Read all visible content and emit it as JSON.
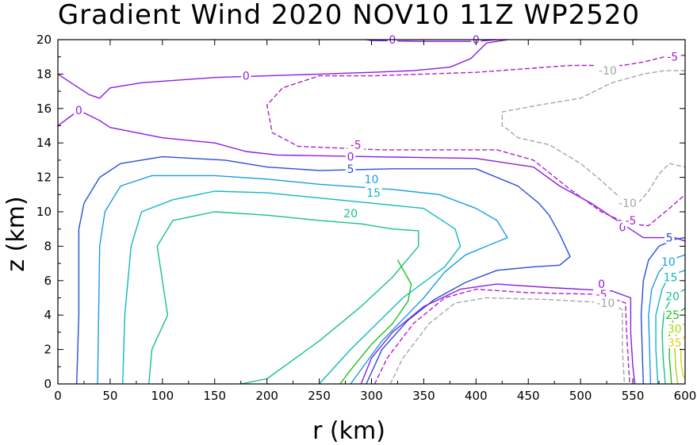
{
  "chart_data": {
    "type": "contour",
    "title": "Gradient Wind 2020 NOV10 11Z  WP2520",
    "xlabel": "r (km)",
    "ylabel": "z (km)",
    "xlim": [
      0,
      600
    ],
    "ylim": [
      0,
      20
    ],
    "xticks": [
      0,
      50,
      100,
      150,
      200,
      250,
      300,
      350,
      400,
      450,
      500,
      550,
      600
    ],
    "yticks": [
      0,
      2,
      4,
      6,
      8,
      10,
      12,
      14,
      16,
      18,
      20
    ],
    "colors": {
      "-10": "#a6a6a6",
      "-5": "#b020c8",
      "0": "#8a1ee0",
      "5": "#2850d8",
      "10": "#1a9ce6",
      "15": "#12b8c0",
      "20": "#18c08e",
      "25": "#22c020",
      "30": "#a8d818",
      "35": "#dcd21e"
    },
    "contours": [
      {
        "level": 0,
        "dash": false,
        "points": [
          [
            0,
            18
          ],
          [
            30,
            16.8
          ],
          [
            40,
            16.6
          ],
          [
            50,
            17.2
          ],
          [
            80,
            17.5
          ],
          [
            150,
            17.8
          ],
          [
            200,
            17.9
          ],
          [
            250,
            18
          ],
          [
            300,
            18.1
          ],
          [
            340,
            18.2
          ],
          [
            375,
            18.4
          ],
          [
            395,
            18.9
          ],
          [
            410,
            19.8
          ],
          [
            430,
            20
          ]
        ]
      },
      {
        "level": 0,
        "dash": false,
        "points": [
          [
            0,
            15
          ],
          [
            20,
            15.9
          ],
          [
            40,
            15.3
          ],
          [
            50,
            14.9
          ],
          [
            100,
            14.3
          ],
          [
            150,
            14
          ],
          [
            180,
            13.5
          ],
          [
            210,
            13.3
          ],
          [
            300,
            13.2
          ],
          [
            400,
            13.1
          ],
          [
            455,
            12.6
          ],
          [
            480,
            11.5
          ],
          [
            510,
            10.5
          ],
          [
            535,
            9.5
          ],
          [
            560,
            8.5
          ],
          [
            590,
            8.5
          ],
          [
            600,
            8.3
          ]
        ]
      },
      {
        "level": 0,
        "dash": false,
        "points": [
          [
            295,
            20
          ],
          [
            300,
            19.95
          ],
          [
            350,
            19.9
          ],
          [
            400,
            19.9
          ],
          [
            420,
            20
          ]
        ]
      },
      {
        "level": -5,
        "dash": true,
        "points": [
          [
            600,
            19.1
          ],
          [
            580,
            19
          ],
          [
            560,
            18.7
          ],
          [
            540,
            18.5
          ],
          [
            490,
            18.5
          ],
          [
            400,
            18.1
          ],
          [
            300,
            17.9
          ],
          [
            250,
            17.9
          ],
          [
            215,
            17.2
          ],
          [
            200,
            16.2
          ],
          [
            205,
            14.6
          ],
          [
            230,
            13.8
          ],
          [
            270,
            13.7
          ],
          [
            310,
            13.6
          ],
          [
            420,
            13.6
          ],
          [
            455,
            13
          ],
          [
            490,
            11.3
          ],
          [
            520,
            10
          ],
          [
            545,
            9.3
          ],
          [
            565,
            9.2
          ],
          [
            585,
            10.2
          ],
          [
            600,
            11
          ]
        ]
      },
      {
        "level": -10,
        "dash": true,
        "points": [
          [
            600,
            18.2
          ],
          [
            580,
            18.2
          ],
          [
            560,
            18
          ],
          [
            530,
            17.5
          ],
          [
            500,
            16.6
          ],
          [
            460,
            16.2
          ],
          [
            425,
            15.8
          ],
          [
            425,
            15
          ],
          [
            430,
            14.8
          ],
          [
            440,
            14.3
          ],
          [
            470,
            13.9
          ],
          [
            500,
            12.8
          ],
          [
            520,
            11.8
          ],
          [
            540,
            10.7
          ],
          [
            555,
            10.5
          ],
          [
            565,
            11.2
          ],
          [
            575,
            12.2
          ],
          [
            585,
            12.8
          ],
          [
            600,
            12.6
          ]
        ]
      },
      {
        "level": 5,
        "dash": false,
        "points": [
          [
            18,
            0
          ],
          [
            20,
            4
          ],
          [
            20,
            9
          ],
          [
            25,
            10.5
          ],
          [
            40,
            12
          ],
          [
            60,
            12.8
          ],
          [
            100,
            13.2
          ],
          [
            160,
            13
          ],
          [
            200,
            12.6
          ],
          [
            250,
            12.4
          ],
          [
            320,
            12.5
          ],
          [
            400,
            12.5
          ],
          [
            440,
            11.5
          ],
          [
            460,
            10.5
          ],
          [
            470,
            9.8
          ],
          [
            480,
            8.7
          ],
          [
            490,
            7.4
          ],
          [
            480,
            6.9
          ],
          [
            455,
            6.8
          ],
          [
            420,
            6.6
          ],
          [
            390,
            5.9
          ],
          [
            360,
            4.9
          ],
          [
            335,
            3.7
          ],
          [
            310,
            2
          ],
          [
            295,
            0
          ]
        ]
      },
      {
        "level": 10,
        "dash": false,
        "points": [
          [
            38,
            0
          ],
          [
            39,
            4
          ],
          [
            40,
            8
          ],
          [
            45,
            10
          ],
          [
            60,
            11.5
          ],
          [
            90,
            12.1
          ],
          [
            150,
            12.1
          ],
          [
            200,
            11.9
          ],
          [
            250,
            11.6
          ],
          [
            320,
            11.3
          ],
          [
            365,
            11
          ],
          [
            400,
            10.2
          ],
          [
            420,
            9.5
          ],
          [
            430,
            8.5
          ],
          [
            410,
            8
          ],
          [
            390,
            7.5
          ],
          [
            370,
            6.5
          ],
          [
            350,
            5
          ],
          [
            310,
            2.5
          ],
          [
            280,
            0
          ]
        ]
      },
      {
        "level": 15,
        "dash": false,
        "points": [
          [
            62,
            0
          ],
          [
            64,
            4
          ],
          [
            70,
            8
          ],
          [
            80,
            10
          ],
          [
            110,
            10.7
          ],
          [
            150,
            11.2
          ],
          [
            200,
            11.1
          ],
          [
            250,
            10.8
          ],
          [
            300,
            10.5
          ],
          [
            350,
            10.2
          ],
          [
            380,
            9
          ],
          [
            385,
            8
          ],
          [
            370,
            6.8
          ],
          [
            330,
            5
          ],
          [
            280,
            2
          ],
          [
            250,
            0
          ]
        ]
      },
      {
        "level": 20,
        "dash": false,
        "points": [
          [
            87,
            0
          ],
          [
            90,
            2
          ],
          [
            105,
            4
          ],
          [
            100,
            6
          ],
          [
            95,
            8
          ],
          [
            110,
            9.5
          ],
          [
            150,
            10
          ],
          [
            200,
            9.8
          ],
          [
            250,
            9.5
          ],
          [
            290,
            9.3
          ],
          [
            320,
            9
          ],
          [
            345,
            8.9
          ],
          [
            345,
            8
          ],
          [
            320,
            6.2
          ],
          [
            290,
            4.5
          ],
          [
            250,
            2.5
          ],
          [
            200,
            0.3
          ],
          [
            175,
            0
          ]
        ]
      },
      {
        "level": 25,
        "dash": false,
        "points": [
          [
            270,
            0
          ],
          [
            280,
            0.8
          ],
          [
            300,
            2.3
          ],
          [
            320,
            3.5
          ],
          [
            335,
            4.8
          ],
          [
            338,
            5.8
          ],
          [
            325,
            7.2
          ]
        ]
      },
      {
        "level": 0,
        "dash": false,
        "points": [
          [
            290,
            0
          ],
          [
            300,
            1.5
          ],
          [
            320,
            3
          ],
          [
            350,
            4.5
          ],
          [
            385,
            5.5
          ],
          [
            420,
            5.8
          ],
          [
            470,
            5.6
          ],
          [
            530,
            5.4
          ],
          [
            548,
            5
          ],
          [
            548,
            3
          ],
          [
            550,
            1
          ],
          [
            552,
            0
          ]
        ]
      },
      {
        "level": -5,
        "dash": true,
        "points": [
          [
            303,
            0
          ],
          [
            315,
            1.5
          ],
          [
            340,
            3.5
          ],
          [
            370,
            5
          ],
          [
            400,
            5.5
          ],
          [
            450,
            5.3
          ],
          [
            520,
            5.2
          ],
          [
            543,
            4.7
          ],
          [
            544,
            3
          ],
          [
            546,
            1
          ],
          [
            547,
            0
          ]
        ]
      },
      {
        "level": -10,
        "dash": true,
        "points": [
          [
            318,
            0
          ],
          [
            330,
            1.5
          ],
          [
            355,
            3.5
          ],
          [
            380,
            4.7
          ],
          [
            410,
            5
          ],
          [
            470,
            4.9
          ],
          [
            530,
            4.7
          ],
          [
            540,
            4.3
          ],
          [
            540,
            2
          ],
          [
            542,
            0
          ]
        ]
      },
      {
        "level": 5,
        "dash": false,
        "points": [
          [
            600,
            8.5
          ],
          [
            590,
            8.4
          ],
          [
            575,
            8
          ],
          [
            565,
            7.2
          ],
          [
            560,
            6
          ],
          [
            558,
            4
          ],
          [
            559,
            2
          ],
          [
            560,
            0
          ]
        ]
      },
      {
        "level": 10,
        "dash": false,
        "points": [
          [
            600,
            7.5
          ],
          [
            585,
            7.2
          ],
          [
            575,
            6.5
          ],
          [
            568,
            5.5
          ],
          [
            565,
            4
          ],
          [
            566,
            2
          ],
          [
            567,
            0
          ]
        ]
      },
      {
        "level": 15,
        "dash": false,
        "points": [
          [
            600,
            6.6
          ],
          [
            585,
            6.3
          ],
          [
            578,
            5.5
          ],
          [
            572,
            4
          ],
          [
            572,
            2
          ],
          [
            574,
            0
          ]
        ]
      },
      {
        "level": 20,
        "dash": false,
        "points": [
          [
            600,
            5.5
          ],
          [
            588,
            5.1
          ],
          [
            580,
            4.2
          ],
          [
            578,
            3
          ],
          [
            579,
            1.5
          ],
          [
            581,
            0
          ]
        ]
      },
      {
        "level": 25,
        "dash": false,
        "points": [
          [
            600,
            4.4
          ],
          [
            590,
            4
          ],
          [
            585,
            3
          ],
          [
            585,
            1.5
          ],
          [
            587,
            0
          ]
        ]
      },
      {
        "level": 30,
        "dash": false,
        "points": [
          [
            600,
            3.5
          ],
          [
            592,
            3.2
          ],
          [
            590,
            2.2
          ],
          [
            591,
            1
          ],
          [
            593,
            0
          ]
        ]
      },
      {
        "level": 35,
        "dash": false,
        "points": [
          [
            600,
            2.8
          ],
          [
            596,
            2.4
          ],
          [
            596,
            1.3
          ],
          [
            598,
            0.5
          ],
          [
            600,
            0.3
          ]
        ]
      }
    ],
    "labels": [
      {
        "text": "0",
        "level": 0,
        "x": 320,
        "y": 20
      },
      {
        "text": "0",
        "level": 0,
        "x": 400,
        "y": 20
      },
      {
        "text": "0",
        "level": 0,
        "x": 180,
        "y": 17.9
      },
      {
        "text": "0",
        "level": 0,
        "x": 20,
        "y": 15.9
      },
      {
        "text": "0",
        "level": 0,
        "x": 280,
        "y": 13.2
      },
      {
        "text": "0",
        "level": 0,
        "x": 540,
        "y": 9.1
      },
      {
        "text": "0",
        "level": 0,
        "x": 520,
        "y": 5.8
      },
      {
        "text": "-5",
        "level": -5,
        "x": 588,
        "y": 19
      },
      {
        "text": "-5",
        "level": -5,
        "x": 285,
        "y": 13.9
      },
      {
        "text": "-5",
        "level": -5,
        "x": 548,
        "y": 9.5
      },
      {
        "text": "-5",
        "level": -5,
        "x": 520,
        "y": 5.2
      },
      {
        "text": "-10",
        "level": -10,
        "x": 526,
        "y": 18.2
      },
      {
        "text": "-10",
        "level": -10,
        "x": 545,
        "y": 10.5
      },
      {
        "text": "-10",
        "level": -10,
        "x": 524,
        "y": 4.7
      },
      {
        "text": "5",
        "level": 5,
        "x": 280,
        "y": 12.5
      },
      {
        "text": "5",
        "level": 5,
        "x": 585,
        "y": 8.5
      },
      {
        "text": "10",
        "level": 10,
        "x": 300,
        "y": 11.9
      },
      {
        "text": "10",
        "level": 10,
        "x": 584,
        "y": 7.1
      },
      {
        "text": "15",
        "level": 15,
        "x": 302,
        "y": 11.1
      },
      {
        "text": "15",
        "level": 15,
        "x": 586,
        "y": 6.2
      },
      {
        "text": "20",
        "level": 20,
        "x": 280,
        "y": 9.9
      },
      {
        "text": "20",
        "level": 20,
        "x": 588,
        "y": 5.1
      },
      {
        "text": "25",
        "level": 25,
        "x": 588,
        "y": 4
      },
      {
        "text": "30",
        "level": 30,
        "x": 590,
        "y": 3.2
      },
      {
        "text": "35",
        "level": 35,
        "x": 590,
        "y": 2.4
      }
    ]
  }
}
